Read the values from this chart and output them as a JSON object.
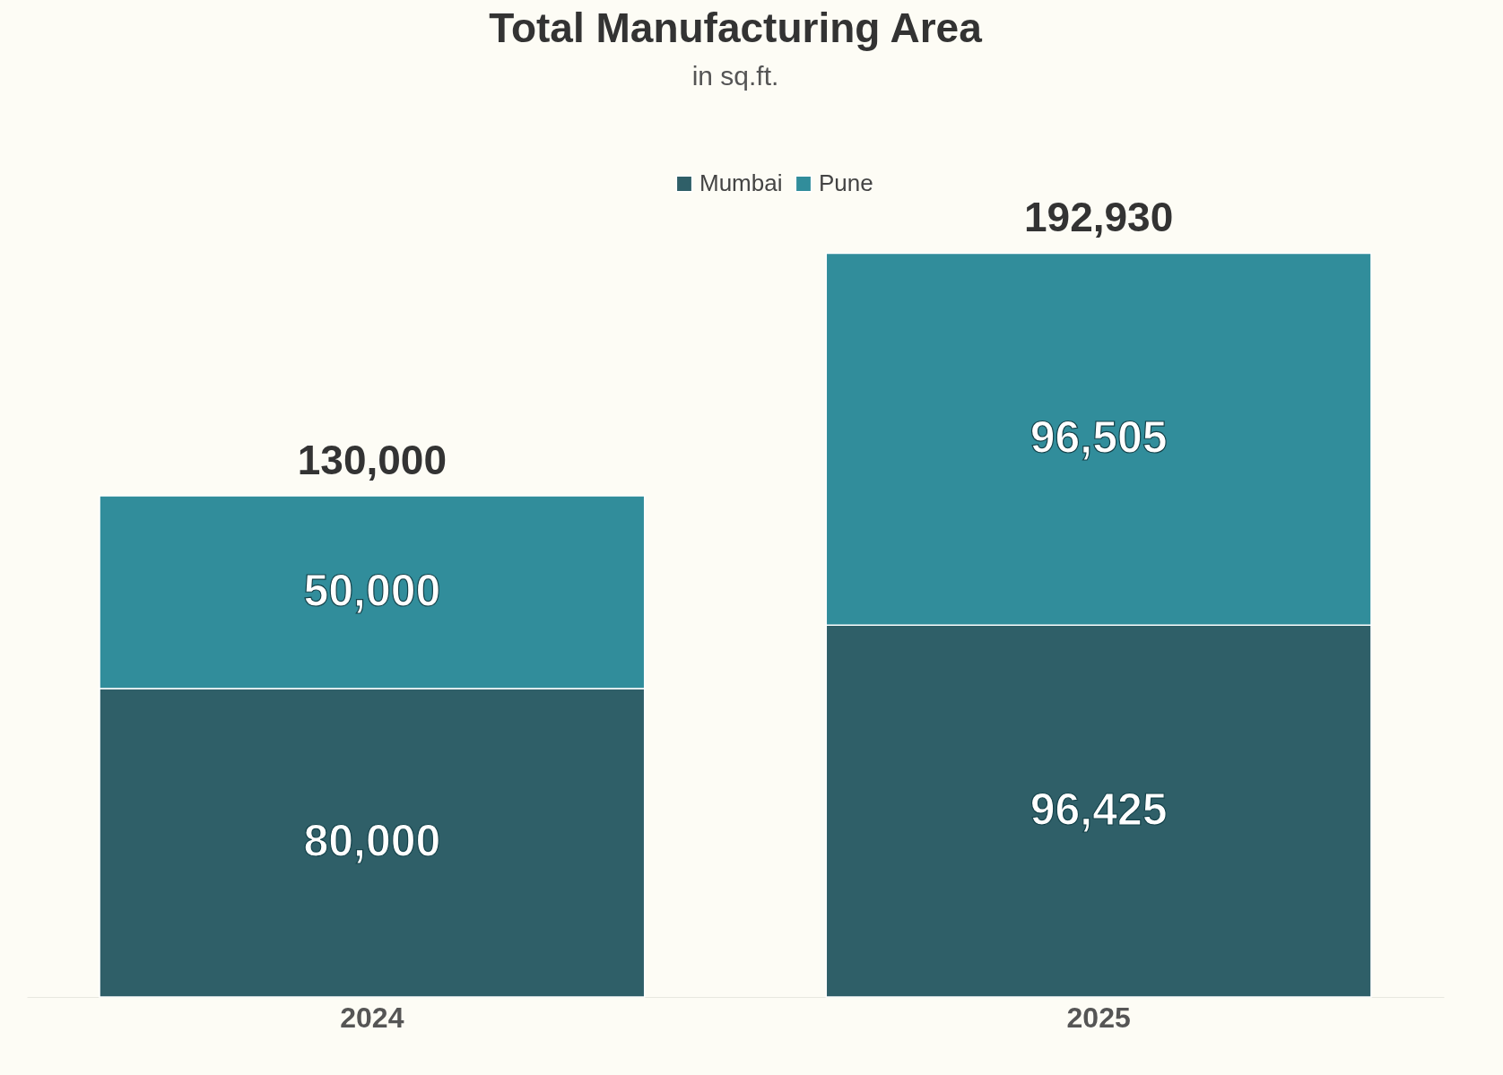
{
  "chart_data": {
    "type": "bar",
    "title": "Total Manufacturing Area",
    "subtitle": "in sq.ft.",
    "categories": [
      "2024",
      "2025"
    ],
    "stacked": true,
    "totals": [
      "130,000",
      "192,930"
    ],
    "legend": "top",
    "tick_labels": "x",
    "series": [
      {
        "name": "Mumbai",
        "color": "#2f5f68",
        "values": [
          80000,
          96425
        ],
        "value_labels": [
          "80,000",
          "96,425"
        ]
      },
      {
        "name": "Pune",
        "color": "#318d9b",
        "values": [
          50000,
          96505
        ],
        "value_labels": [
          "50,000",
          "96,505"
        ]
      }
    ]
  }
}
